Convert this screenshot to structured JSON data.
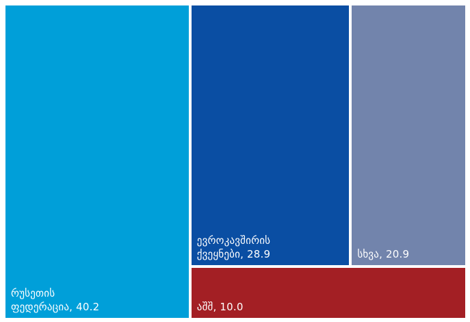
{
  "chart_data": {
    "type": "treemap",
    "title": "",
    "unit": "",
    "items": [
      {
        "name": "რუსეთის ფედერაცია",
        "value": 40.2,
        "label": "რუსეთის\nფედერაცია, 40.2",
        "color": "#009fd9"
      },
      {
        "name": "ევროკავშირის ქვეყნები",
        "value": 28.9,
        "label": "ევროკავშირის\nქვეყნები, 28.9",
        "color": "#0a4ea3"
      },
      {
        "name": "სხვა",
        "value": 20.9,
        "label": "სხვა, 20.9",
        "color": "#7284ac"
      },
      {
        "name": "აშშ",
        "value": 10.0,
        "label": "აშშ, 10.0",
        "color": "#a31f24"
      }
    ]
  }
}
